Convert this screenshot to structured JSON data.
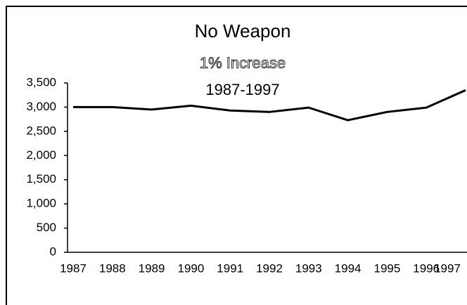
{
  "chart_data": {
    "type": "line",
    "title": "No Weapon",
    "subtitle": [
      "1% Increase",
      "1987-1997"
    ],
    "categories": [
      "1987",
      "1988",
      "1989",
      "1990",
      "1991",
      "1992",
      "1993",
      "1994",
      "1995",
      "1996",
      "1997"
    ],
    "values": [
      3000,
      3000,
      2950,
      3030,
      2930,
      2900,
      2990,
      2730,
      2900,
      2990,
      3350
    ],
    "color": "#000000",
    "ylim": [
      0,
      3500
    ],
    "yticks": [
      0,
      500,
      {
        "value": 1000,
        "label": "1,000"
      },
      {
        "value": 1500,
        "label": "1,500"
      },
      {
        "value": 2000,
        "label": "2,000"
      },
      {
        "value": 2500,
        "label": "2,500"
      },
      {
        "value": 3000,
        "label": "3,000"
      },
      {
        "value": 3500,
        "label": "3,500"
      }
    ],
    "grid": false
  }
}
